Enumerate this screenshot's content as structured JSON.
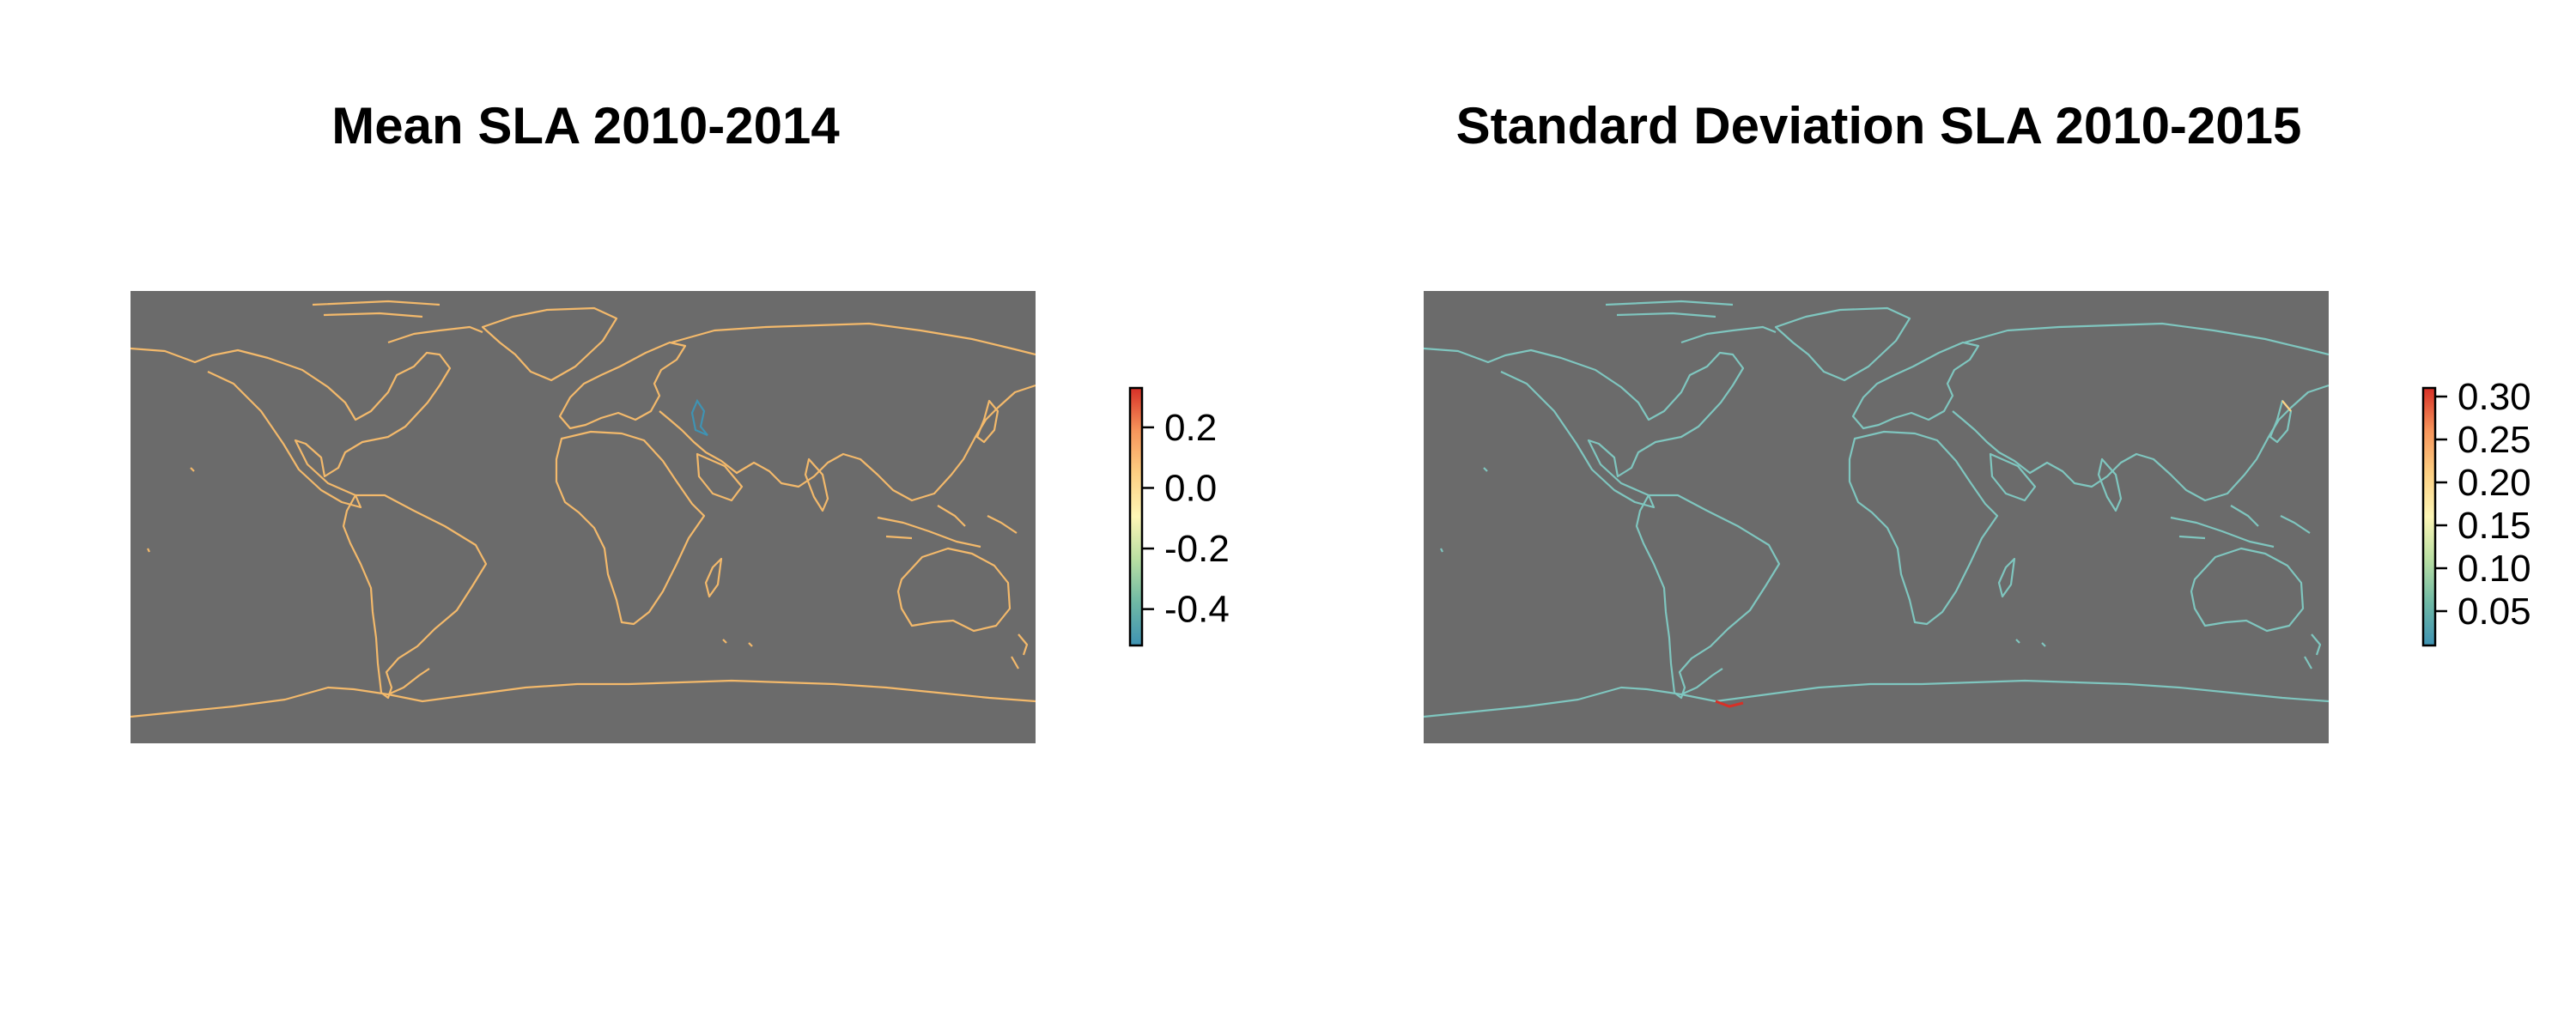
{
  "panels": [
    {
      "title": "Mean SLA 2010-2014",
      "background_color": "#6b6b6b",
      "coastline_color": "#f3b96b",
      "legend": {
        "range": [
          -0.52,
          0.33
        ],
        "ticks": [
          {
            "value": 0.2,
            "label": "0.2"
          },
          {
            "value": 0.0,
            "label": "0.0"
          },
          {
            "value": -0.2,
            "label": "-0.2"
          },
          {
            "value": -0.4,
            "label": "-0.4"
          }
        ],
        "palette": [
          "#3f93b3",
          "#6fb9a5",
          "#b9dfa3",
          "#fdf6b6",
          "#fdd083",
          "#f7955b",
          "#d73027"
        ]
      }
    },
    {
      "title": "Standard Deviation SLA 2010-2015",
      "background_color": "#6b6b6b",
      "coastline_color": "#7fc6bf",
      "legend": {
        "range": [
          0.01,
          0.31
        ],
        "ticks": [
          {
            "value": 0.3,
            "label": "0.30"
          },
          {
            "value": 0.25,
            "label": "0.25"
          },
          {
            "value": 0.2,
            "label": "0.20"
          },
          {
            "value": 0.15,
            "label": "0.15"
          },
          {
            "value": 0.1,
            "label": "0.10"
          },
          {
            "value": 0.05,
            "label": "0.05"
          }
        ],
        "palette": [
          "#3f93b3",
          "#6fb9a5",
          "#b9dfa3",
          "#fdf6b6",
          "#fdd083",
          "#f7955b",
          "#d73027"
        ]
      }
    }
  ]
}
